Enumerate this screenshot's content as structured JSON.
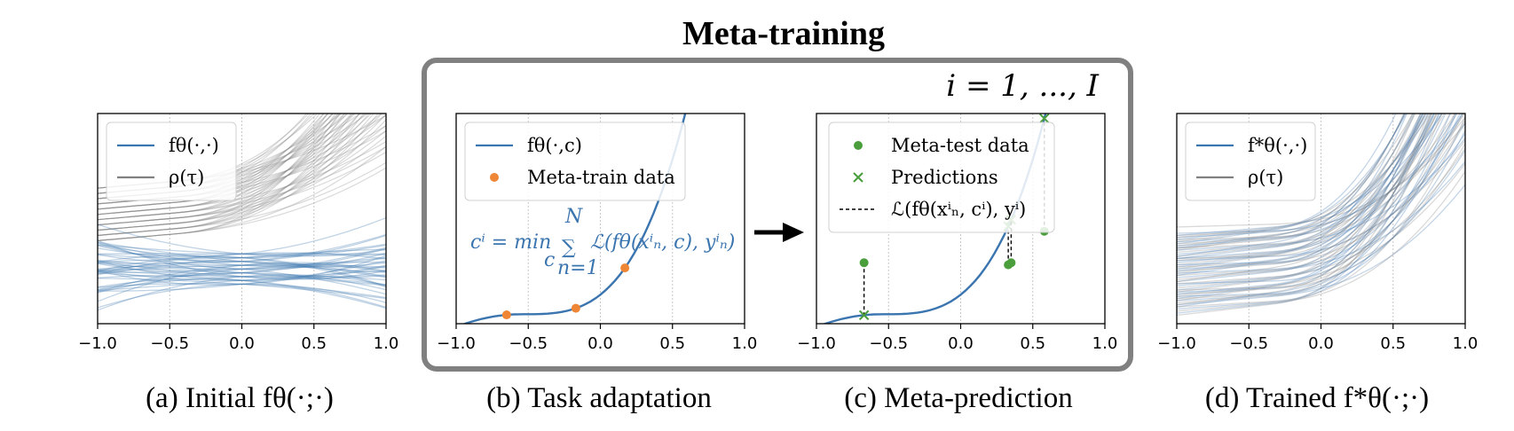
{
  "figure": {
    "title": "Meta-training",
    "iteration_label": "i = 1, ..., I",
    "equation": {
      "lhs": "cⁱ = min",
      "sub": "c",
      "sum": "∑",
      "sum_top": "N",
      "sum_bottom": "n=1",
      "rhs": "ℒ(fθ(xⁱₙ, c), yⁱₙ)"
    },
    "colors": {
      "blue": "#3b75af",
      "gray": "#808080",
      "orange": "#ef8636",
      "green": "#4a9e3c",
      "box": "#808080"
    }
  },
  "panels": [
    {
      "id": "a",
      "caption": "(a) Initial fθ(·;·)",
      "legend": [
        "fθ(·,·)",
        "ρ(τ)"
      ]
    },
    {
      "id": "b",
      "caption": "(b) Task adaptation",
      "legend": [
        "fθ(·,c)",
        "Meta-train data"
      ]
    },
    {
      "id": "c",
      "caption": "(c) Meta-prediction",
      "legend": [
        "Meta-test data",
        "Predictions",
        "ℒ(fθ(xⁱₙ, cⁱ), yⁱ)"
      ]
    },
    {
      "id": "d",
      "caption": "(d) Trained f*θ(·;·)",
      "legend": [
        "f*θ(·,·)",
        "ρ(τ)"
      ]
    }
  ],
  "chart_data": [
    {
      "type": "line",
      "panel": "a",
      "x_ticks": [
        "−1.0",
        "−0.5",
        "0.0",
        "0.5",
        "1.0"
      ],
      "xlim": [
        -1.0,
        1.0
      ],
      "grid": "vertical",
      "legend_position": "top-left",
      "series": [
        {
          "name": "fθ(·,·)",
          "note_color": "blue"
        },
        {
          "name": "ρ(τ)",
          "note_color": "gray"
        }
      ]
    },
    {
      "type": "scatter",
      "panel": "b",
      "x_ticks": [
        "−1.0",
        "−0.5",
        "0.0",
        "0.5",
        "1.0"
      ],
      "xlim": [
        -1.0,
        1.0
      ],
      "grid": "vertical",
      "legend_position": "top-left",
      "series": [
        {
          "name": "fθ(·,c)",
          "kind": "line"
        },
        {
          "name": "Meta-train data",
          "kind": "points",
          "x": [
            -0.65,
            -0.17,
            0.17
          ]
        }
      ]
    },
    {
      "type": "scatter",
      "panel": "c",
      "x_ticks": [
        "−1.0",
        "−0.5",
        "0.0",
        "0.5",
        "1.0"
      ],
      "xlim": [
        -1.0,
        1.0
      ],
      "grid": "vertical",
      "legend_position": "top-left",
      "series": [
        {
          "name": "Meta-test data",
          "kind": "points",
          "x": [
            -0.67,
            0.33,
            0.35,
            0.58
          ]
        },
        {
          "name": "Predictions",
          "kind": "points",
          "x": [
            -0.67,
            0.33,
            0.35,
            0.58
          ]
        }
      ]
    },
    {
      "type": "line",
      "panel": "d",
      "x_ticks": [
        "−1.0",
        "−0.5",
        "0.0",
        "0.5",
        "1.0"
      ],
      "xlim": [
        -1.0,
        1.0
      ],
      "grid": "vertical",
      "legend_position": "top-left",
      "series": [
        {
          "name": "f*θ(·,·)",
          "note_color": "blue"
        },
        {
          "name": "ρ(τ)",
          "note_color": "gray"
        }
      ]
    }
  ]
}
